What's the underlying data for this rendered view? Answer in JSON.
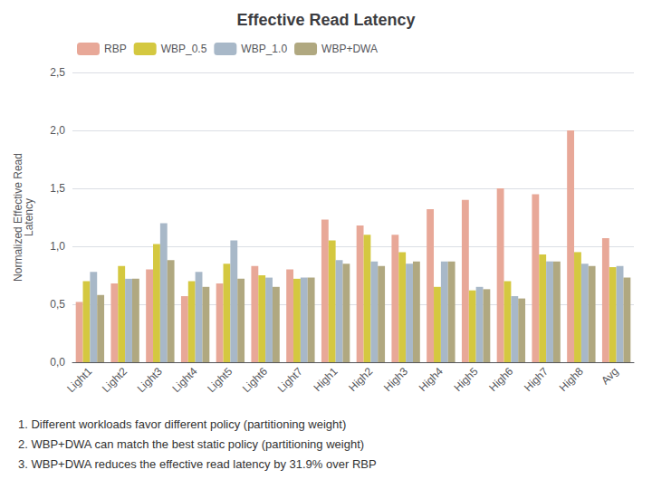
{
  "chart_data": {
    "type": "bar",
    "title": "Effective Read Latency",
    "ylabel": "Normalized Effective Read\nLatency",
    "categories": [
      "Light1",
      "Light2",
      "Light3",
      "Light4",
      "Light5",
      "Light6",
      "Light7",
      "High1",
      "High2",
      "High3",
      "High4",
      "High5",
      "High6",
      "High7",
      "High8",
      "Avg"
    ],
    "series": [
      {
        "name": "RBP",
        "color": "#E8A898",
        "values": [
          0.52,
          0.68,
          0.8,
          0.57,
          0.68,
          0.83,
          0.8,
          1.23,
          1.18,
          1.1,
          1.32,
          1.4,
          1.5,
          1.45,
          2.0,
          1.07
        ]
      },
      {
        "name": "WBP_0.5",
        "color": "#D4C840",
        "values": [
          0.7,
          0.83,
          1.02,
          0.7,
          0.85,
          0.75,
          0.72,
          1.05,
          1.1,
          0.95,
          0.65,
          0.62,
          0.7,
          0.93,
          0.95,
          0.82
        ]
      },
      {
        "name": "WBP_1.0",
        "color": "#A8B8C8",
        "values": [
          0.78,
          0.72,
          1.2,
          0.78,
          1.05,
          0.73,
          0.73,
          0.88,
          0.87,
          0.85,
          0.87,
          0.65,
          0.57,
          0.87,
          0.85,
          0.83
        ]
      },
      {
        "name": "WBP+DWA",
        "color": "#B0A880",
        "values": [
          0.58,
          0.72,
          0.88,
          0.65,
          0.72,
          0.65,
          0.73,
          0.85,
          0.83,
          0.87,
          0.87,
          0.63,
          0.55,
          0.87,
          0.83,
          0.73
        ]
      }
    ],
    "ylim": [
      0,
      2.5
    ],
    "yticks": [
      {
        "value": 0.0,
        "label": "0,0"
      },
      {
        "value": 0.5,
        "label": "0,5"
      },
      {
        "value": 1.0,
        "label": "1,0"
      },
      {
        "value": 1.5,
        "label": "1,5"
      },
      {
        "value": 2.0,
        "label": "2,0"
      },
      {
        "value": 2.5,
        "label": "2,5"
      }
    ],
    "grid": true,
    "legend": "upper left",
    "annotations": [
      "1. Different workloads favor different policy (partitioning weight)",
      "2. WBP+DWA can match the best static policy (partitioning weight)",
      "3. WBP+DWA reduces the effective read latency by 31.9% over RBP"
    ]
  }
}
